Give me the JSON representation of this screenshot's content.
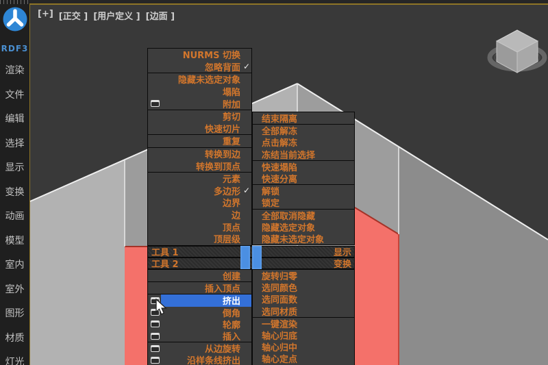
{
  "chrome": {
    "viewport_label_segments": [
      "[+]",
      "[正交 ]",
      "[用户定义 ]",
      "[边面 ]"
    ]
  },
  "sidebar": {
    "logo_text": "RDF3",
    "items": [
      "渲染",
      "文件",
      "编辑",
      "选择",
      "显示",
      "变换",
      "动画",
      "模型",
      "室内",
      "室外",
      "图形",
      "材质",
      "灯光"
    ]
  },
  "quad_menu": {
    "titlebars": [
      {
        "left": "工具 1",
        "right": "显示"
      },
      {
        "left": "工具 2",
        "right": "变换"
      }
    ],
    "left_top_sections": [
      {
        "items": [
          {
            "label": "NURMS 切换"
          },
          {
            "label": "忽略背面",
            "checked": true
          }
        ]
      },
      {
        "items": [
          {
            "label": "隐藏未选定对象"
          },
          {
            "label": "塌陷"
          },
          {
            "label": "附加",
            "settings": true
          }
        ]
      },
      {
        "items": [
          {
            "label": "剪切"
          },
          {
            "label": "快速切片"
          }
        ]
      },
      {
        "items": [
          {
            "label": "重复"
          }
        ]
      },
      {
        "items": [
          {
            "label": "转换到边"
          },
          {
            "label": "转换到顶点"
          }
        ]
      },
      {
        "items": [
          {
            "label": "元素"
          },
          {
            "label": "多边形",
            "checked": true
          },
          {
            "label": "边界"
          },
          {
            "label": "边"
          },
          {
            "label": "顶点"
          },
          {
            "label": "顶层级"
          }
        ]
      }
    ],
    "left_bottom_sections": [
      {
        "items": [
          {
            "label": "创建"
          }
        ]
      },
      {
        "items": [
          {
            "label": "插入顶点"
          }
        ]
      },
      {
        "items": [
          {
            "label": "挤出",
            "settings": true,
            "highlighted": true
          },
          {
            "label": "倒角",
            "settings": true
          },
          {
            "label": "轮廓",
            "settings": true
          },
          {
            "label": "插入",
            "settings": true
          }
        ]
      },
      {
        "items": [
          {
            "label": "从边旋转",
            "settings": true
          },
          {
            "label": "沿样条线挤出",
            "settings": true
          }
        ]
      }
    ],
    "right_top_sections": [
      {
        "items": [
          {
            "label": "结束隔离"
          }
        ]
      },
      {
        "items": [
          {
            "label": "全部解冻"
          },
          {
            "label": "点击解冻"
          },
          {
            "label": "冻结当前选择"
          }
        ]
      },
      {
        "items": [
          {
            "label": "快速塌陷"
          },
          {
            "label": "快速分离"
          }
        ]
      },
      {
        "items": [
          {
            "label": "解锁"
          },
          {
            "label": "锁定"
          }
        ]
      },
      {
        "items": [
          {
            "label": "全部取消隐藏"
          },
          {
            "label": "隐藏选定对象"
          },
          {
            "label": "隐藏未选定对象"
          }
        ]
      }
    ],
    "right_bottom_sections": [
      {
        "items": [
          {
            "label": "旋转归零"
          },
          {
            "label": "选同颜色"
          },
          {
            "label": "选同面数"
          },
          {
            "label": "选同材质"
          }
        ]
      },
      {
        "items": [
          {
            "label": "一键渲染"
          },
          {
            "label": "轴心归底"
          },
          {
            "label": "轴心归中"
          },
          {
            "label": "轴心定点"
          }
        ]
      }
    ]
  },
  "colors": {
    "menu_text_orange": "#d2762c",
    "menu_background": "#3d3d3d",
    "highlight_blue": "#3470d8",
    "quad_center_blue": "#4b8fe2",
    "selected_face_red": "#f4716a",
    "viewport_background": "#393939",
    "viewport_border_yellow": "#8f7526",
    "logo_blue": "#2e86d5"
  }
}
